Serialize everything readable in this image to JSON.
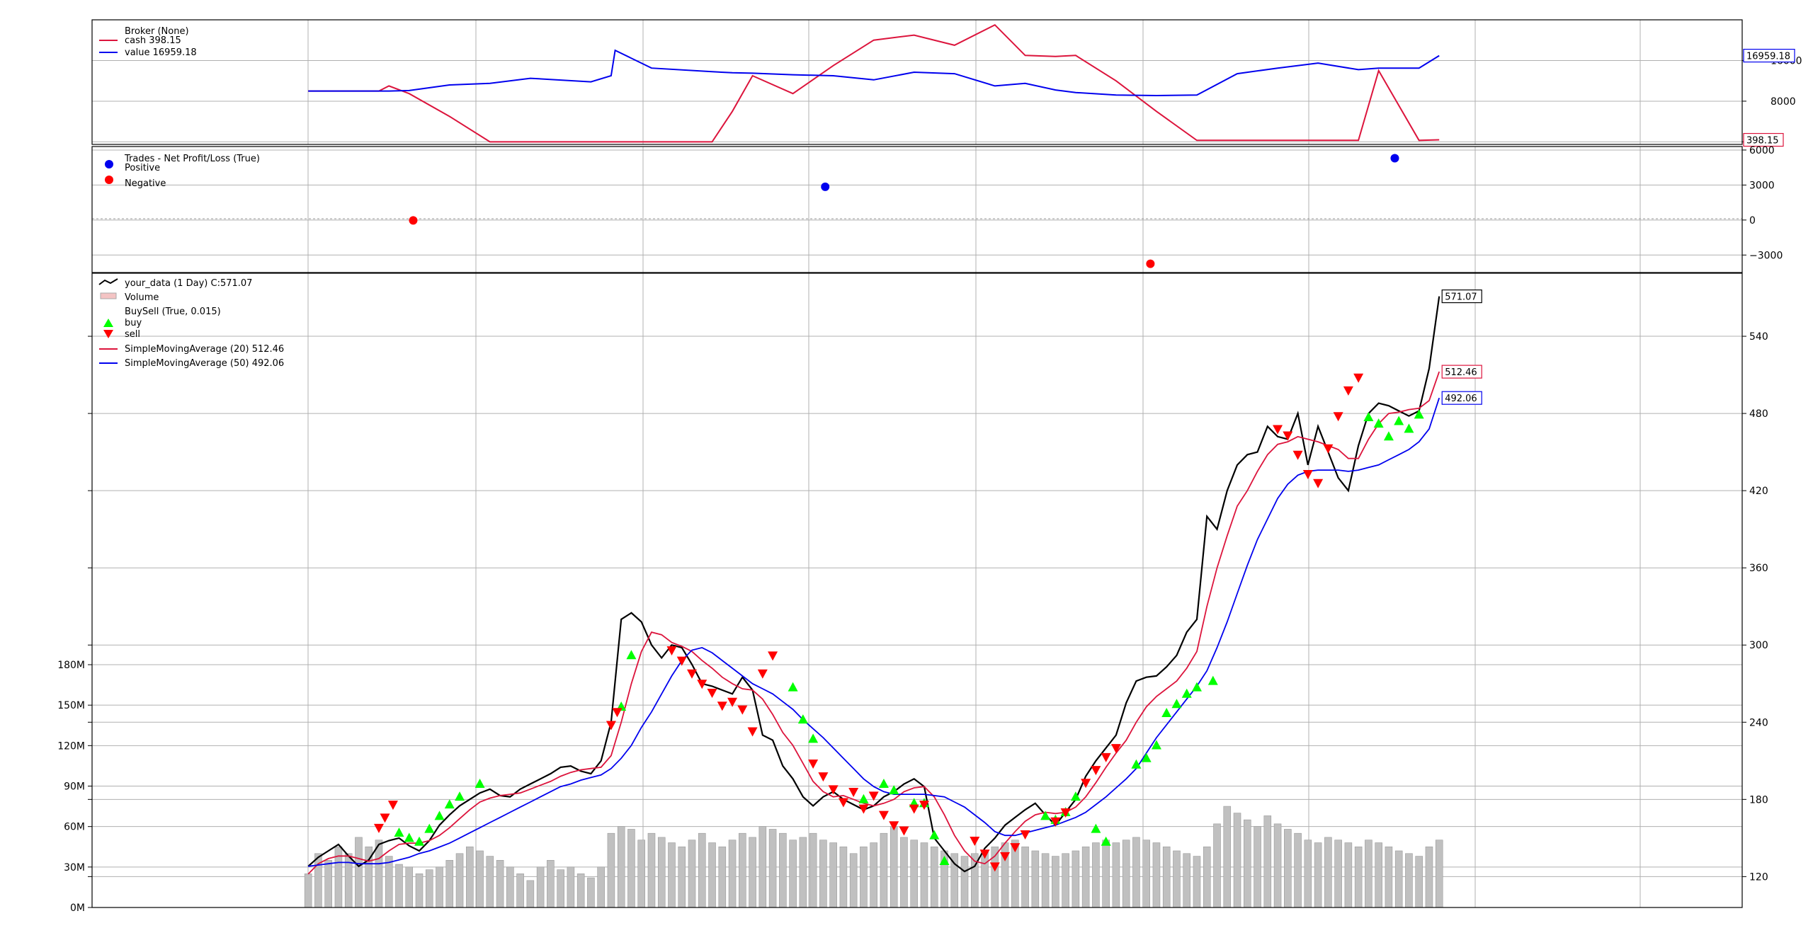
{
  "chart_data": [
    {
      "type": "line",
      "panel": "broker",
      "legend": {
        "title": "Broker (None)",
        "entries": [
          {
            "label": "cash 398.15",
            "color": "#dc143c"
          },
          {
            "label": "value 16959.18",
            "color": "#0000ee"
          }
        ],
        "placement": "top-left"
      },
      "yticks": [
        "0",
        "8000",
        "16000"
      ],
      "ytick_values": [
        0,
        8000,
        16000
      ],
      "ylim": [
        -500,
        24000
      ],
      "last_value_tags": {
        "cash": "398.15",
        "value": "16959.18"
      },
      "grid": true,
      "x": [
        0,
        20,
        35,
        40,
        50,
        70,
        90,
        110,
        140,
        150,
        152,
        170,
        200,
        210,
        220,
        240,
        260,
        280,
        300,
        320,
        340,
        355,
        370,
        380,
        400,
        420,
        440,
        460,
        480,
        500,
        520,
        530,
        550,
        560
      ],
      "series": [
        {
          "name": "cash",
          "color": "#dc143c",
          "values": [
            10000,
            10000,
            10000,
            11000,
            9500,
            5000,
            0,
            0,
            0,
            0,
            0,
            0,
            0,
            6000,
            13000,
            9500,
            15000,
            20000,
            21000,
            19000,
            23000,
            17000,
            16800,
            17000,
            12000,
            6000,
            300,
            300,
            300,
            300,
            300,
            14000,
            300,
            398.15
          ]
        },
        {
          "name": "value",
          "color": "#0000ee",
          "values": [
            10000,
            10000,
            10000,
            10000,
            10100,
            11200,
            11500,
            12500,
            11800,
            13000,
            18000,
            14500,
            13800,
            13600,
            13500,
            13200,
            13000,
            12200,
            13700,
            13400,
            11000,
            11500,
            10200,
            9700,
            9200,
            9100,
            9200,
            13400,
            14500,
            15500,
            14200,
            14500,
            14500,
            16959.18
          ]
        }
      ]
    },
    {
      "type": "scatter",
      "panel": "trades",
      "legend": {
        "title": "Trades - Net Profit/Loss (True)",
        "entries": [
          {
            "label": "Positive",
            "color": "#0000ee"
          },
          {
            "label": "Negative",
            "color": "#ff0000"
          }
        ],
        "placement": "top-left"
      },
      "yticks": [
        "6000",
        "3000",
        "0",
        "−3000"
      ],
      "ytick_values": [
        6000,
        3000,
        0,
        -3000
      ],
      "ylim": [
        -4500,
        6300
      ],
      "points": [
        {
          "x": 52,
          "y": -30,
          "sign": "negative"
        },
        {
          "x": 256,
          "y": 2850,
          "sign": "positive"
        },
        {
          "x": 417,
          "y": -3750,
          "sign": "negative"
        },
        {
          "x": 538,
          "y": 5300,
          "sign": "positive"
        }
      ]
    },
    {
      "type": "line",
      "panel": "price",
      "legend": {
        "entries": [
          {
            "label": "your_data (1 Day) C:571.07",
            "color": "#000000"
          },
          {
            "label": "Volume",
            "color": "#b0b0b0"
          },
          {
            "label": "BuySell (True, 0.015)",
            "color": ""
          },
          {
            "label": "buy",
            "color": "#00ff00"
          },
          {
            "label": "sell",
            "color": "#ff0000"
          },
          {
            "label": "SimpleMovingAverage (20) 512.46",
            "color": "#dc143c"
          },
          {
            "label": "SimpleMovingAverage (50) 492.06",
            "color": "#0000ee"
          }
        ],
        "placement": "top-left"
      },
      "price_yticks": [
        "120",
        "180",
        "240",
        "300",
        "360",
        "420",
        "480",
        "540"
      ],
      "price_ytick_values": [
        120,
        180,
        240,
        300,
        360,
        420,
        480,
        540
      ],
      "price_ylim": [
        96,
        589
      ],
      "volume_yticks": [
        "0M",
        "30M",
        "60M",
        "90M",
        "120M",
        "150M",
        "180M"
      ],
      "volume_ytick_values": [
        0,
        30,
        60,
        90,
        120,
        150,
        180
      ],
      "volume_ylim": [
        0,
        180
      ],
      "last_value_tags": {
        "close": "571.07",
        "sma20": "512.46",
        "sma50": "492.06"
      },
      "grid": true,
      "x": [
        0,
        5,
        10,
        15,
        20,
        25,
        30,
        35,
        40,
        45,
        50,
        55,
        60,
        65,
        70,
        75,
        80,
        85,
        90,
        95,
        100,
        105,
        110,
        115,
        120,
        125,
        130,
        135,
        140,
        145,
        150,
        155,
        160,
        165,
        170,
        175,
        180,
        185,
        190,
        195,
        200,
        205,
        210,
        215,
        220,
        225,
        230,
        235,
        240,
        245,
        250,
        255,
        260,
        265,
        270,
        275,
        280,
        285,
        290,
        295,
        300,
        305,
        310,
        315,
        320,
        325,
        330,
        335,
        340,
        345,
        350,
        355,
        360,
        365,
        370,
        375,
        380,
        385,
        390,
        395,
        400,
        405,
        410,
        415,
        420,
        425,
        430,
        435,
        440,
        445,
        450,
        455,
        460,
        465,
        470,
        475,
        480,
        485,
        490,
        495,
        500,
        505,
        510,
        515,
        520,
        525,
        530,
        535,
        540,
        545,
        550,
        555,
        560
      ],
      "series": [
        {
          "name": "close",
          "color": "#000000",
          "values": [
            128,
            135,
            140,
            145,
            136,
            128,
            133,
            145,
            148,
            150,
            144,
            140,
            148,
            160,
            168,
            175,
            180,
            185,
            188,
            183,
            182,
            188,
            192,
            196,
            200,
            205,
            206,
            202,
            200,
            210,
            240,
            320,
            325,
            318,
            300,
            290,
            300,
            298,
            285,
            270,
            268,
            265,
            262,
            275,
            265,
            230,
            226,
            206,
            196,
            182,
            175,
            182,
            186,
            180,
            176,
            172,
            175,
            182,
            186,
            192,
            196,
            190,
            150,
            140,
            130,
            124,
            128,
            142,
            150,
            160,
            166,
            172,
            177,
            168,
            160,
            170,
            180,
            198,
            210,
            220,
            230,
            255,
            272,
            275,
            276,
            283,
            292,
            310,
            320,
            400,
            390,
            420,
            440,
            448,
            450,
            470,
            462,
            460,
            480,
            440,
            470,
            450,
            430,
            420,
            455,
            480,
            488,
            486,
            482,
            478,
            482,
            515,
            571.07
          ]
        },
        {
          "name": "SMA(20)",
          "color": "#dc143c",
          "values": [
            122,
            130,
            134,
            136,
            136,
            134,
            132,
            134,
            140,
            145,
            146,
            146,
            148,
            152,
            158,
            165,
            172,
            178,
            181,
            183,
            184,
            185,
            188,
            191,
            194,
            198,
            201,
            203,
            204,
            205,
            214,
            240,
            270,
            295,
            310,
            308,
            302,
            299,
            295,
            288,
            282,
            275,
            270,
            266,
            265,
            258,
            246,
            232,
            222,
            208,
            194,
            186,
            182,
            183,
            180,
            177,
            175,
            177,
            180,
            186,
            189,
            190,
            182,
            168,
            152,
            140,
            132,
            130,
            136,
            146,
            155,
            163,
            168,
            170,
            169,
            170,
            174,
            182,
            193,
            205,
            216,
            226,
            240,
            252,
            260,
            266,
            272,
            282,
            295,
            330,
            360,
            385,
            408,
            420,
            435,
            448,
            456,
            458,
            462,
            460,
            458,
            455,
            452,
            445,
            445,
            460,
            472,
            480,
            481,
            483,
            484,
            490,
            512.46
          ]
        },
        {
          "name": "SMA(50)",
          "color": "#0000ee",
          "values": [
            128,
            129,
            130,
            131,
            131,
            130,
            130,
            130,
            131,
            133,
            135,
            138,
            140,
            143,
            146,
            150,
            154,
            158,
            162,
            166,
            170,
            174,
            178,
            182,
            186,
            190,
            192,
            195,
            197,
            199,
            204,
            212,
            222,
            236,
            248,
            262,
            276,
            288,
            296,
            298,
            294,
            288,
            282,
            276,
            270,
            266,
            262,
            256,
            250,
            242,
            235,
            228,
            220,
            212,
            204,
            196,
            190,
            186,
            184,
            184,
            184,
            184,
            183,
            182,
            178,
            174,
            168,
            162,
            155,
            152,
            152,
            154,
            156,
            158,
            160,
            163,
            166,
            170,
            176,
            182,
            189,
            196,
            204,
            216,
            228,
            238,
            248,
            258,
            268,
            280,
            298,
            318,
            340,
            362,
            382,
            398,
            414,
            425,
            432,
            435,
            436,
            436,
            436,
            435,
            436,
            438,
            440,
            444,
            448,
            452,
            458,
            468,
            492.06
          ]
        }
      ],
      "volume_millions": [
        25,
        40,
        35,
        45,
        40,
        52,
        45,
        50,
        38,
        32,
        30,
        25,
        28,
        30,
        35,
        40,
        45,
        42,
        38,
        35,
        30,
        25,
        20,
        30,
        35,
        28,
        30,
        25,
        22,
        30,
        55,
        60,
        58,
        50,
        55,
        52,
        48,
        45,
        50,
        55,
        48,
        45,
        50,
        55,
        52,
        60,
        58,
        55,
        50,
        52,
        55,
        50,
        48,
        45,
        40,
        45,
        48,
        55,
        60,
        52,
        50,
        48,
        45,
        42,
        40,
        38,
        40,
        42,
        45,
        48,
        50,
        45,
        42,
        40,
        38,
        40,
        42,
        45,
        48,
        50,
        48,
        50,
        52,
        50,
        48,
        45,
        42,
        40,
        38,
        45,
        62,
        75,
        70,
        65,
        60,
        68,
        62,
        58,
        55,
        50,
        48,
        52,
        50,
        48,
        45,
        50,
        48,
        45,
        42,
        40,
        38,
        45,
        50
      ],
      "buy_markers": [
        [
          45,
          162
        ],
        [
          50,
          158
        ],
        [
          55,
          155
        ],
        [
          60,
          165
        ],
        [
          65,
          175
        ],
        [
          70,
          184
        ],
        [
          75,
          190
        ],
        [
          85,
          200
        ],
        [
          155,
          260
        ],
        [
          160,
          300
        ],
        [
          240,
          275
        ],
        [
          245,
          250
        ],
        [
          250,
          235
        ],
        [
          275,
          188
        ],
        [
          285,
          200
        ],
        [
          290,
          195
        ],
        [
          300,
          185
        ],
        [
          305,
          185
        ],
        [
          310,
          160
        ],
        [
          315,
          140
        ],
        [
          365,
          175
        ],
        [
          370,
          172
        ],
        [
          375,
          178
        ],
        [
          380,
          190
        ],
        [
          390,
          165
        ],
        [
          395,
          155
        ],
        [
          410,
          215
        ],
        [
          415,
          220
        ],
        [
          420,
          230
        ],
        [
          425,
          255
        ],
        [
          430,
          262
        ],
        [
          435,
          270
        ],
        [
          440,
          275
        ],
        [
          448,
          280
        ],
        [
          525,
          485
        ],
        [
          530,
          480
        ],
        [
          535,
          470
        ],
        [
          540,
          482
        ],
        [
          545,
          476
        ],
        [
          550,
          487
        ]
      ],
      "sell_markers": [
        [
          35,
          150
        ],
        [
          38,
          158
        ],
        [
          42,
          168
        ],
        [
          150,
          230
        ],
        [
          153,
          240
        ],
        [
          180,
          288
        ],
        [
          185,
          280
        ],
        [
          190,
          270
        ],
        [
          195,
          262
        ],
        [
          200,
          255
        ],
        [
          205,
          245
        ],
        [
          210,
          248
        ],
        [
          215,
          242
        ],
        [
          220,
          225
        ],
        [
          225,
          270
        ],
        [
          230,
          284
        ],
        [
          250,
          200
        ],
        [
          255,
          190
        ],
        [
          260,
          180
        ],
        [
          265,
          170
        ],
        [
          270,
          178
        ],
        [
          275,
          165
        ],
        [
          280,
          175
        ],
        [
          285,
          160
        ],
        [
          290,
          152
        ],
        [
          295,
          148
        ],
        [
          300,
          165
        ],
        [
          305,
          168
        ],
        [
          330,
          140
        ],
        [
          335,
          130
        ],
        [
          340,
          120
        ],
        [
          345,
          128
        ],
        [
          350,
          135
        ],
        [
          355,
          145
        ],
        [
          370,
          155
        ],
        [
          375,
          162
        ],
        [
          385,
          185
        ],
        [
          390,
          195
        ],
        [
          395,
          205
        ],
        [
          400,
          212
        ],
        [
          480,
          460
        ],
        [
          485,
          455
        ],
        [
          490,
          440
        ],
        [
          495,
          425
        ],
        [
          500,
          418
        ],
        [
          505,
          445
        ],
        [
          510,
          470
        ],
        [
          515,
          490
        ],
        [
          520,
          500
        ]
      ]
    }
  ]
}
